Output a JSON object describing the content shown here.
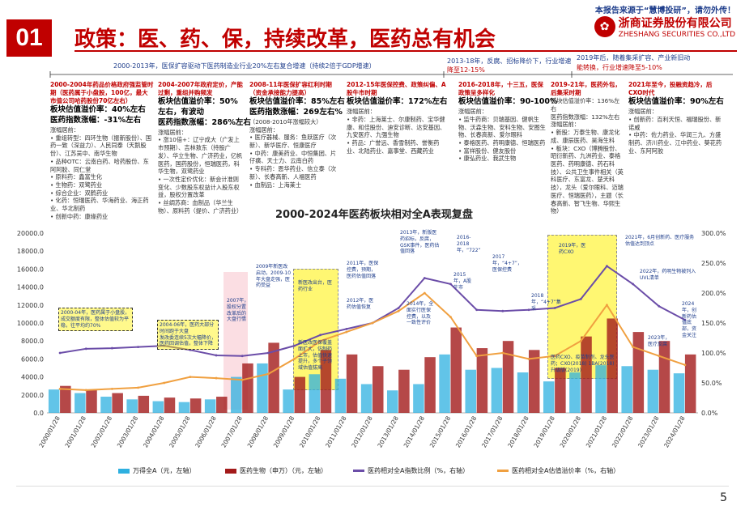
{
  "header": {
    "badge": "01",
    "title": "政策：医、药、保，持续改革，医药总有机会",
    "source_note": "本报告来源于“慧博投研”，请勿外传！",
    "logo_cn": "浙商证券股份有限公司",
    "logo_en": "ZHESHANG SECURITIES CO.,LTD",
    "logo_icon": "zheshang-logo-icon"
  },
  "periods": [
    {
      "text": "2000-2013年，医保扩容驱动下医药制造业行业20%左右复合增速（持续2倍于GDP增速）"
    },
    {
      "text": "2013-18年，反腐、招标降价下，行业增速"
    },
    {
      "text": "降至12-15%"
    },
    {
      "text": "2019年后，随着集采扩容、产业新旧动"
    },
    {
      "text": "能转换，行业增速降至5-10%"
    }
  ],
  "columns": [
    {
      "title": "2000-2004年药品价格政府强监管时期（医药属于小盘股，100亿，最大市值公司哈药股份70亿左右）",
      "lines": [
        "板块估值溢价率：40%左右",
        "医药指数涨幅：-31%左右",
        "涨幅居前：",
        "• 重组转型：四环生物（振新股份）、国药一致（深益力）、人民同泰（天鹅股份）、江苏吴中、南华生物",
        "• 品种OTC：云南白药、哈药股份、东阿阿胶、同仁堂",
        "• 原料药：鑫富生化",
        "• 生物药：双鹭药业",
        "• 综合企业：双鹤药业",
        "• 化药：恒瑞医药、华海药业、海正药业、华北制药",
        "• 创新中药：康缘药业"
      ]
    },
    {
      "title": "2004-2007年政府定价，产能过剩，重组并购频发",
      "lines": [
        "板块估值溢价率：50%左右，有波动",
        "医药指数涨幅：286%左右",
        "涨幅居前：",
        "• 涨10倍+：辽宁成大（广发上市预期）、吉林敖东（持股广发）、华立生物、广济药业，亿帆医药，国药股份，恒瑞医药，科华生物，双鹭药业",
        "• 一次性定价优化：新会计准则变化、少数股东权益计入股东权益，股权分置改革",
        "• 丝绸苏商：血制品（华兰生物）、原料药（提价、广济药业）"
      ]
    },
    {
      "title": "2008-11年医保扩容红利时期（资金承接能力提高）",
      "lines": [
        "板块估值溢价率：85%左右",
        "医药指数涨幅：269左右%",
        "（2008-2010年涨幅较大）",
        "涨幅居前：",
        "• 医疗器械、服务：鱼跃医疗（次新）、新华医疗、恒康医疗",
        "• 中药：康美药业、中恒集团、片仔癀、天士力、云南白药",
        "• 专科药：恩华药业、信立泰（次新）、长春高新、人福医药",
        "• 血制品：上海莱士"
      ]
    },
    {
      "title": "2012-15年医保控费、政策纠偏、A股牛市时期",
      "lines": [
        "板块估值溢价率：172%左右",
        "涨幅居前：",
        "• 非药：上海莱士、尔康制药、宝华健康、和佳股份、迪安诊断、达安基因、九安医疗、九强生物",
        "• 药品：广誉远、香雪制药、誉衡药业、北陆药业、嘉事堂、西藏药业"
      ]
    },
    {
      "title": "2016-2018年，十三五，医保政策呈多样化",
      "lines": [
        "板块估值溢价率：90-100%",
        "涨幅居前：",
        "• 监牛药商：贝瑞基因、健帆生物、沃森生物、安科生物、安图生物、长春高新、爱尔眼科",
        "• 泰格医药、药明康德、恒瑞医药",
        "• 富祥股份、健友股份",
        "• 康弘药业、我武生物"
      ]
    },
    {
      "title": "2019-21年，医药外包，后集采时期",
      "lines": [
        "板块估值溢价率：136%左右",
        "医药指数涨幅：132%左右",
        "涨幅居前：",
        "• 新股：万泰生物、康龙化成、康辰医药、昊海生科",
        "• 板块：CXO（博腾股份、昭衍新药、九洲药业、泰格医药、药明康德、药石科技）、公共卫生事件相关（英科医疗、东富龙、楚天科技），龙头（爱尔眼科、迈瑞医疗、恒瑞医药），主题（长春高新、智飞生物、华熙生物）"
      ]
    },
    {
      "title": "2021年至今，投融资趋冷，后CXO时代",
      "lines": [
        "板块估值溢价率：90%左右",
        "涨幅居前：",
        "• 创新药：百利天恒、福瑞股份、新诺威",
        "• 中药：佐力药业、华润三九、方盛制药、济川药业、江中药业、葵花药业、东阿阿胶"
      ]
    }
  ],
  "chart_title": "2000-2024年医药板块相对全A表现复盘",
  "annotations": [
    "2000-04年，医药属于小盘股，成交额度有限，整体估值较为平稳，往平均约70%",
    "2004-06年，医药大部分时间跑于大盘",
    "发改委连续5次大幅降价，医药回调估值，整体下降",
    "2007年，股权分置改革后的大盘行情",
    "2009年新医改启动，2009-10年大盘走强，医药受益",
    "新医改出台，医药行业",
    "新医改医保覆盖面扩大，仿制药上市，估值快速提升，多个子领域估值拔高",
    "2011年，医保控费，预期，医药估值回落",
    "2012年，医药估值恢复",
    "2013年，新版医药招标，反腐，GSK事件，医药估值回落",
    "2014年，全面实行医保控费，以及一致性评价",
    "2015年，A股牛市",
    "2016-2018年，“722”",
    "2017年，“4+7”，医保控费",
    "2018年，“4+7”集采",
    "2019年，医药CXO",
    "医药CXO、疫苗制剂、龙头医药；CXO(2018) 1BA(2018) 升级版(2019)",
    "2021年，6月创新药、医疗服务估值达到顶点",
    "2022年，药明生物被列入UVL清单",
    "2023年，医疗反腐",
    "2024年，创新药估值底部，资金关注"
  ],
  "chart_data": {
    "type": "bar",
    "title": "2000-2024年医药板块相对全A表现复盘",
    "x_ticks": [
      "2000/01/28",
      "2001/01/28",
      "2002/01/28",
      "2003/01/28",
      "2004/01/28",
      "2005/01/28",
      "2006/01/28",
      "2007/01/28",
      "2008/01/28",
      "2009/01/28",
      "2010/01/28",
      "2011/01/28",
      "2012/01/28",
      "2013/01/28",
      "2014/01/28",
      "2015/01/28",
      "2016/01/28",
      "2017/01/28",
      "2018/01/28",
      "2019/01/28",
      "2020/01/28",
      "2021/01/28",
      "2022/01/28",
      "2023/01/28",
      "2024/01/28"
    ],
    "y_left_ticks": [
      "0.0",
      "2000.0",
      "4000.0",
      "6000.0",
      "8000.0",
      "10000.0",
      "12000.0",
      "14000.0",
      "16000.0",
      "18000.0",
      "20000.0"
    ],
    "y_right_ticks": [
      "0.0%",
      "50.0%",
      "100.0%",
      "150.0%",
      "200.0%",
      "250.0%",
      "300.0%"
    ],
    "ylim_left": [
      0,
      20000
    ],
    "ylim_right": [
      0,
      300
    ],
    "series": [
      {
        "name": "万得全A（元，左轴）",
        "axis": "left",
        "kind": "bar",
        "color": "#2eb0e0",
        "values": [
          2600,
          2200,
          1800,
          1500,
          1300,
          1200,
          1500,
          4000,
          5500,
          2600,
          4300,
          3800,
          3200,
          2500,
          3200,
          6500,
          4800,
          5000,
          4500,
          3500,
          4500,
          5300,
          5200,
          4800,
          4400
        ]
      },
      {
        "name": "医药生物（申万）（元，左轴）",
        "axis": "left",
        "kind": "bar",
        "color": "#a31a1a",
        "values": [
          3000,
          2600,
          2200,
          1900,
          1700,
          1600,
          1800,
          5500,
          7800,
          4000,
          7000,
          6500,
          5200,
          4800,
          6200,
          9500,
          7200,
          8000,
          7000,
          5000,
          8500,
          10500,
          9000,
          8000,
          6500
        ]
      },
      {
        "name": "医药相对全A指数比例（%，右轴）",
        "axis": "right",
        "kind": "line",
        "color": "#6b4da8",
        "values": [
          100,
          107,
          108,
          110,
          112,
          105,
          96,
          95,
          100,
          112,
          130,
          140,
          150,
          175,
          225,
          215,
          172,
          170,
          172,
          175,
          190,
          245,
          215,
          178,
          155
        ]
      },
      {
        "name": "医药相对全A估值溢价率（%，右轴）",
        "axis": "right",
        "kind": "line",
        "color": "#f0a040",
        "values": [
          40,
          38,
          40,
          42,
          50,
          60,
          58,
          55,
          65,
          90,
          120,
          135,
          150,
          170,
          200,
          160,
          95,
          100,
          90,
          95,
          120,
          180,
          110,
          95,
          80
        ]
      }
    ]
  },
  "page_number": "5"
}
